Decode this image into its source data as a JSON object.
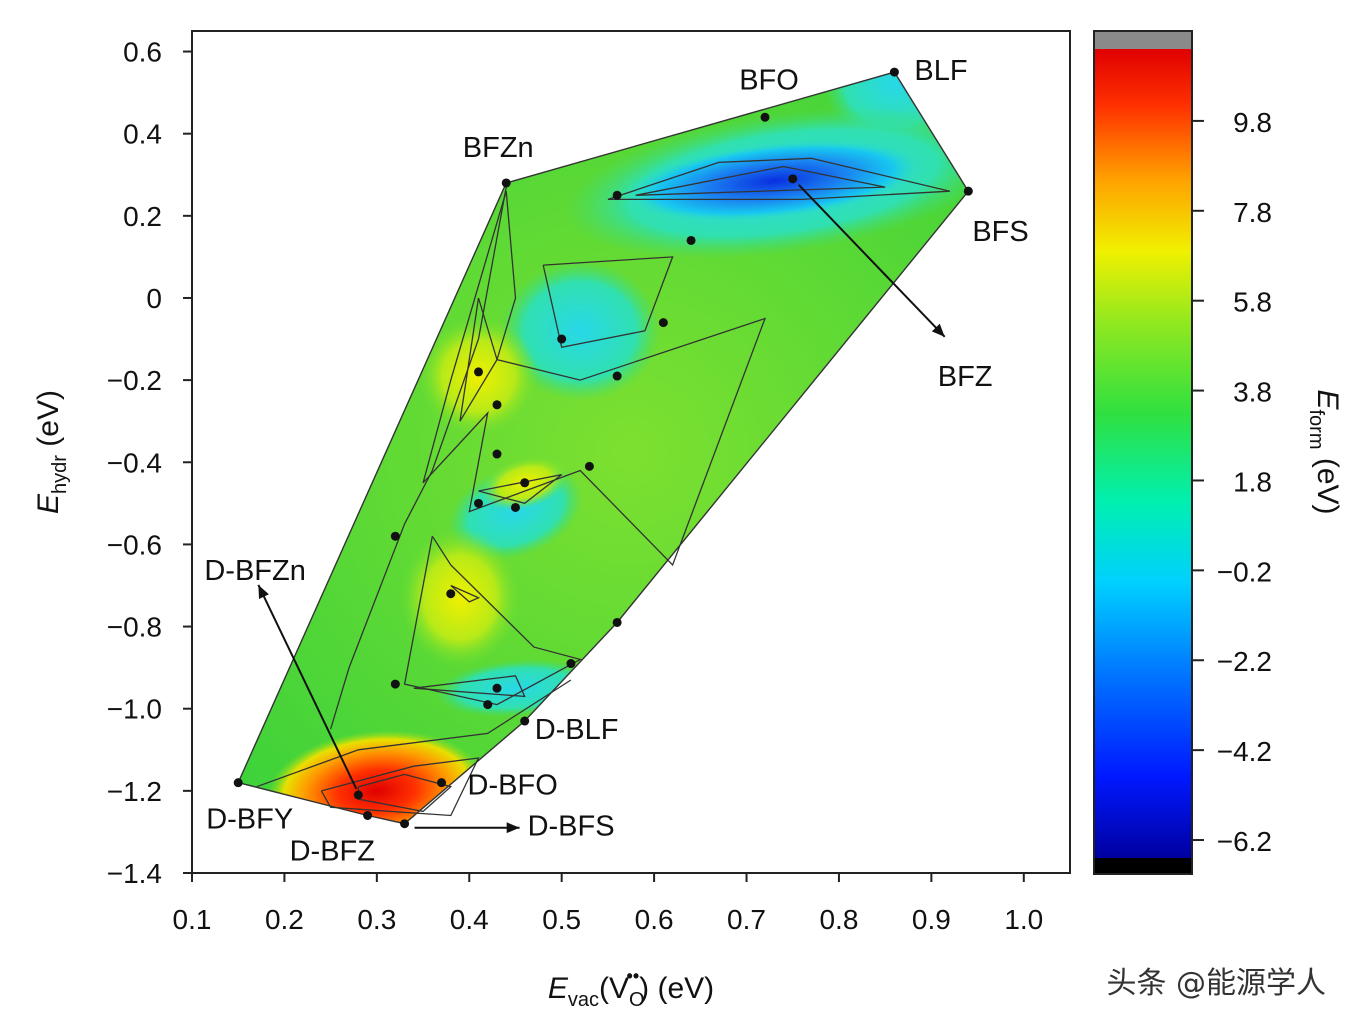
{
  "chart_data": {
    "type": "scatter",
    "subtype": "filled-contour",
    "title": "",
    "xlabel": {
      "main": "E",
      "sub": "vac",
      "tail_pre": "(V",
      "tail_sub": "O",
      "tail_sup": "••",
      "tail_post": ") (eV)"
    },
    "ylabel": {
      "main": "E",
      "sub": "hydr",
      "tail": " (eV)"
    },
    "xlim": [
      0.1,
      1.05
    ],
    "ylim": [
      -1.4,
      0.65
    ],
    "x_ticks": [
      0.1,
      0.2,
      0.3,
      0.4,
      0.5,
      0.6,
      0.7,
      0.8,
      0.9,
      1.0
    ],
    "x_tick_labels": [
      "0.1",
      "0.2",
      "0.3",
      "0.4",
      "0.5",
      "0.6",
      "0.7",
      "0.8",
      "0.9",
      "1.0"
    ],
    "y_ticks": [
      0.6,
      0.4,
      0.2,
      0,
      -0.2,
      -0.4,
      -0.6,
      -0.8,
      -1.0,
      -1.2,
      -1.4
    ],
    "y_tick_labels": [
      "0.6",
      "0.4",
      "0.2",
      "0",
      "−0.2",
      "−0.4",
      "−0.6",
      "−0.8",
      "−1.0",
      "−1.2",
      "−1.4"
    ],
    "points": [
      {
        "x": 0.86,
        "y": 0.55,
        "label": "BLF"
      },
      {
        "x": 0.72,
        "y": 0.44,
        "label": "BFO"
      },
      {
        "x": 0.44,
        "y": 0.28,
        "label": "BFZn"
      },
      {
        "x": 0.94,
        "y": 0.26,
        "label": "BFS"
      },
      {
        "x": 0.75,
        "y": 0.29,
        "label": "BFZ"
      },
      {
        "x": 0.56,
        "y": 0.25,
        "label": ""
      },
      {
        "x": 0.64,
        "y": 0.14,
        "label": ""
      },
      {
        "x": 0.5,
        "y": -0.1,
        "label": ""
      },
      {
        "x": 0.61,
        "y": -0.06,
        "label": ""
      },
      {
        "x": 0.41,
        "y": -0.18,
        "label": ""
      },
      {
        "x": 0.56,
        "y": -0.19,
        "label": ""
      },
      {
        "x": 0.43,
        "y": -0.26,
        "label": ""
      },
      {
        "x": 0.43,
        "y": -0.38,
        "label": ""
      },
      {
        "x": 0.53,
        "y": -0.41,
        "label": ""
      },
      {
        "x": 0.46,
        "y": -0.45,
        "label": ""
      },
      {
        "x": 0.41,
        "y": -0.5,
        "label": ""
      },
      {
        "x": 0.45,
        "y": -0.51,
        "label": ""
      },
      {
        "x": 0.32,
        "y": -0.58,
        "label": ""
      },
      {
        "x": 0.38,
        "y": -0.72,
        "label": ""
      },
      {
        "x": 0.56,
        "y": -0.79,
        "label": ""
      },
      {
        "x": 0.51,
        "y": -0.89,
        "label": ""
      },
      {
        "x": 0.32,
        "y": -0.94,
        "label": ""
      },
      {
        "x": 0.43,
        "y": -0.95,
        "label": ""
      },
      {
        "x": 0.42,
        "y": -0.99,
        "label": ""
      },
      {
        "x": 0.46,
        "y": -1.03,
        "label": "D-BLF"
      },
      {
        "x": 0.37,
        "y": -1.18,
        "label": "D-BFO"
      },
      {
        "x": 0.15,
        "y": -1.18,
        "label": "D-BFY"
      },
      {
        "x": 0.28,
        "y": -1.21,
        "label": "D-BFZn"
      },
      {
        "x": 0.29,
        "y": -1.26,
        "label": "D-BFZ"
      },
      {
        "x": 0.33,
        "y": -1.28,
        "label": "D-BFS"
      }
    ],
    "label_colors": {
      "default": "#111111",
      "highlight": "#e3201b",
      "highlight_label": "D-BFZ"
    },
    "colorbar": {
      "label": {
        "main": "E",
        "sub": "form",
        "tail": " (eV)"
      },
      "range": [
        -6.6,
        11.4
      ],
      "ticks": [
        9.8,
        7.8,
        5.8,
        3.8,
        1.8,
        -0.2,
        -2.2,
        -4.2,
        -6.2
      ],
      "tick_labels": [
        "9.8",
        "7.8",
        "5.8",
        "3.8",
        "1.8",
        "−0.2",
        "−2.2",
        "−4.2",
        "−6.2"
      ],
      "colors": [
        "#000000",
        "#0000c8",
        "#0050ff",
        "#00c8ff",
        "#00ffc0",
        "#20e040",
        "#90e820",
        "#f0f000",
        "#ff9000",
        "#ff2000",
        "#d80000",
        "#808080"
      ]
    }
  },
  "watermark": "头条 @能源学人"
}
